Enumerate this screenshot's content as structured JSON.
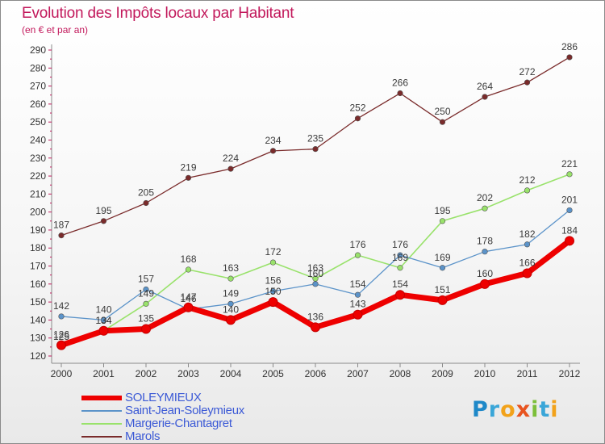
{
  "title": "Evolution des Impôts locaux par Habitant",
  "subtitle": "(en € et par an)",
  "logo": {
    "text": "Proxiti",
    "letters": [
      {
        "ch": "P",
        "color": "#1e88c8"
      },
      {
        "ch": "r",
        "color": "#3aa6d8"
      },
      {
        "ch": "o",
        "color": "#f2a21a"
      },
      {
        "ch": "x",
        "color": "#e8531f"
      },
      {
        "ch": "i",
        "color": "#7cbf3a"
      },
      {
        "ch": "t",
        "color": "#3aa6d8"
      },
      {
        "ch": "i",
        "color": "#f2a21a"
      }
    ]
  },
  "chart_data": {
    "type": "line",
    "title": "Evolution des Impôts locaux par Habitant",
    "subtitle": "(en € et par an)",
    "xlabel": "",
    "ylabel": "",
    "categories": [
      "2000",
      "2001",
      "2002",
      "2003",
      "2004",
      "2005",
      "2006",
      "2007",
      "2008",
      "2009",
      "2010",
      "2011",
      "2012"
    ],
    "ylim": [
      120,
      290
    ],
    "yticks": [
      120,
      130,
      140,
      150,
      160,
      170,
      180,
      190,
      200,
      210,
      220,
      230,
      240,
      250,
      260,
      270,
      280,
      290
    ],
    "grid": false,
    "legend_position": "bottom-left",
    "series": [
      {
        "name": "SOLEYMIEUX",
        "color": "#ee0000",
        "values": [
          126,
          134,
          135,
          147,
          140,
          150,
          136,
          143,
          154,
          151,
          160,
          166,
          184
        ],
        "labels": [
          "126",
          "134",
          "135",
          "147",
          "140",
          "150",
          "136",
          "143",
          "154",
          "151",
          "160",
          "166",
          "184"
        ]
      },
      {
        "name": "Saint-Jean-Soleymieux",
        "color": "#5b93c9",
        "values": [
          142,
          140,
          157,
          146,
          149,
          156,
          160,
          154,
          176,
          169,
          178,
          182,
          201
        ],
        "labels": [
          "142",
          "140",
          "157",
          "146",
          "149",
          "156",
          "160",
          "154",
          "176",
          "169",
          "178",
          "182",
          "201"
        ]
      },
      {
        "name": "Margerie-Chantagret",
        "color": "#99e26b",
        "values": [
          125,
          134,
          149,
          168,
          163,
          172,
          163,
          176,
          169,
          195,
          202,
          212,
          221
        ],
        "labels": [
          "125",
          "134",
          "149",
          "168",
          "163",
          "172",
          "163",
          "176",
          "169",
          "195",
          "202",
          "212",
          "221"
        ]
      },
      {
        "name": "Marols",
        "color": "#7a2b2b",
        "values": [
          187,
          195,
          205,
          219,
          224,
          234,
          235,
          252,
          266,
          250,
          264,
          272,
          286
        ],
        "labels": [
          "187",
          "195",
          "205",
          "219",
          "224",
          "234",
          "235",
          "252",
          "266",
          "250",
          "264",
          "272",
          "286"
        ]
      }
    ]
  }
}
